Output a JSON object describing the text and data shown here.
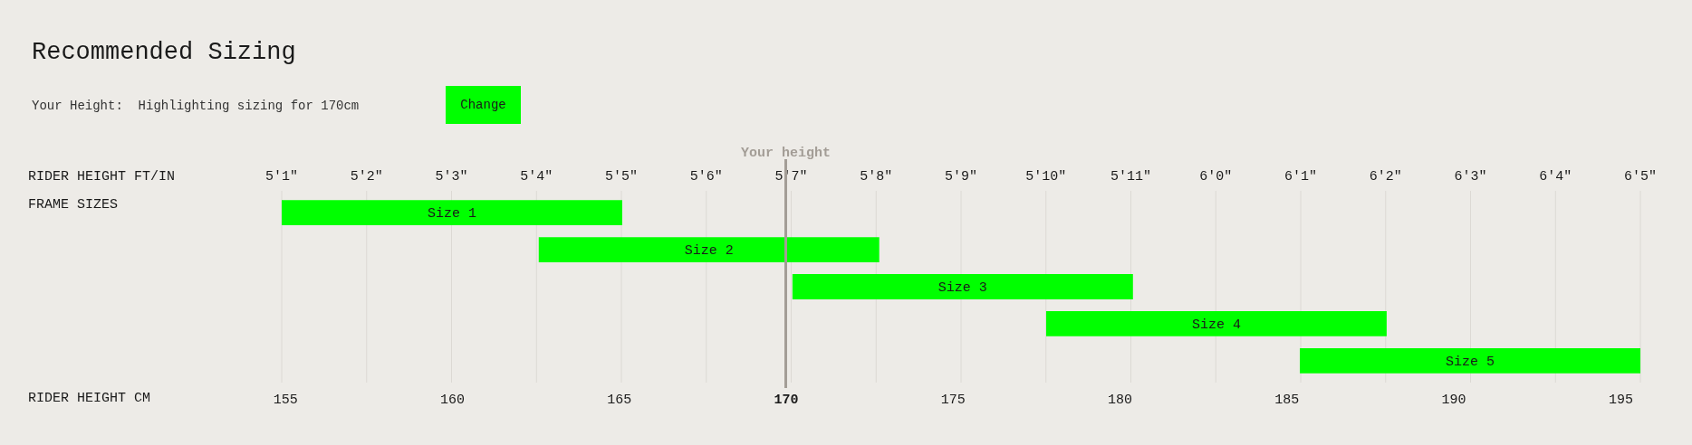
{
  "chart_data": {
    "type": "bar",
    "orientation": "horizontal",
    "title": "Recommended Sizing",
    "subtitle": "Your Height:  Highlighting sizing for 170cm",
    "annotations": [
      "Change",
      "RIDER HEIGHT FT/IN",
      "FRAME SIZES",
      "RIDER HEIGHT CM",
      "5'1\"",
      "5'2\"",
      "5'3\"",
      "5'4\"",
      "5'5\"",
      "5'6\"",
      "5'7\"",
      "5'8\"",
      "5'9\"",
      "5'10\"",
      "5'11\"",
      "6'0\"",
      "6'1\"",
      "6'2\"",
      "6'3\"",
      "6'4\"",
      "6'5\""
    ],
    "categories": [
      "Size 1",
      "Size 2",
      "Size 3",
      "Size 4",
      "Size 5"
    ],
    "base": [
      154.9,
      162.6,
      170.2,
      177.8,
      185.4
    ],
    "values": [
      10.2,
      10.2,
      10.2,
      10.2,
      10.2
    ],
    "color": "#00ff00",
    "xlim": [
      154.9,
      195.6
    ],
    "xticks": [
      155,
      160,
      165,
      170,
      175,
      180,
      185,
      190,
      195
    ],
    "ref_lines": [
      {
        "axis": "x",
        "value": 170,
        "label": "Your height",
        "color": "#a39d96"
      }
    ],
    "grid": "x"
  }
}
